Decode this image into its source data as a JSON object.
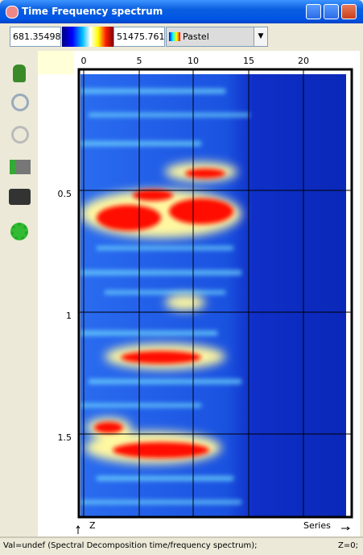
{
  "window": {
    "title": "Time Frequency spectrum"
  },
  "toolbar": {
    "min_value": "681.35498",
    "max_value": "51475.761",
    "palette": "Pastel"
  },
  "plot": {
    "x_ticks": [
      "0",
      "5",
      "10",
      "15",
      "20"
    ],
    "y_ticks": [
      "0.5",
      "1",
      "1.5"
    ],
    "z_label": "Z",
    "series_label": "Series"
  },
  "status": {
    "message": "Val=undef (Spectral Decomposition time/frequency spectrum);",
    "z": "Z=0;"
  }
}
